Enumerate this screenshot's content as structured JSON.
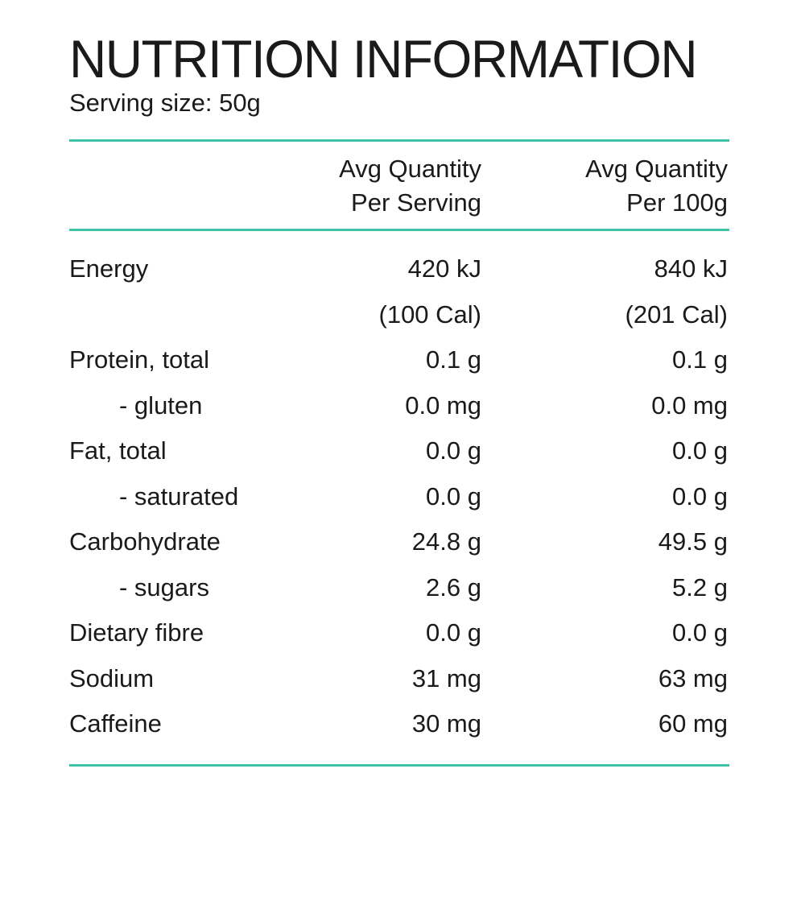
{
  "title": "NUTRITION INFORMATION",
  "serving_size": "Serving size: 50g",
  "columns": {
    "per_serving": [
      "Avg Quantity",
      "Per Serving"
    ],
    "per_100g": [
      "Avg Quantity",
      "Per 100g"
    ]
  },
  "rows": [
    {
      "label": "Energy",
      "per_serving": "420 kJ",
      "per_100g": "840 kJ"
    },
    {
      "label": "",
      "per_serving": "(100 Cal)",
      "per_100g": "(201 Cal)"
    },
    {
      "label": "Protein, total",
      "per_serving": "0.1 g",
      "per_100g": "0.1 g"
    },
    {
      "label": "- gluten",
      "per_serving": "0.0 mg",
      "per_100g": "0.0 mg"
    },
    {
      "label": "Fat, total",
      "per_serving": "0.0 g",
      "per_100g": "0.0 g"
    },
    {
      "label": "- saturated",
      "per_serving": "0.0 g",
      "per_100g": "0.0 g"
    },
    {
      "label": "Carbohydrate",
      "per_serving": "24.8 g",
      "per_100g": "49.5 g"
    },
    {
      "label": "- sugars",
      "per_serving": "2.6 g",
      "per_100g": "5.2 g"
    },
    {
      "label": "Dietary fibre",
      "per_serving": "0.0 g",
      "per_100g": "0.0 g"
    },
    {
      "label": "Sodium",
      "per_serving": "31 mg",
      "per_100g": "63 mg"
    },
    {
      "label": "Caffeine",
      "per_serving": "30 mg",
      "per_100g": "60 mg"
    }
  ],
  "colors": {
    "rule": "#3fc1a5",
    "text": "#1a1a1a"
  }
}
